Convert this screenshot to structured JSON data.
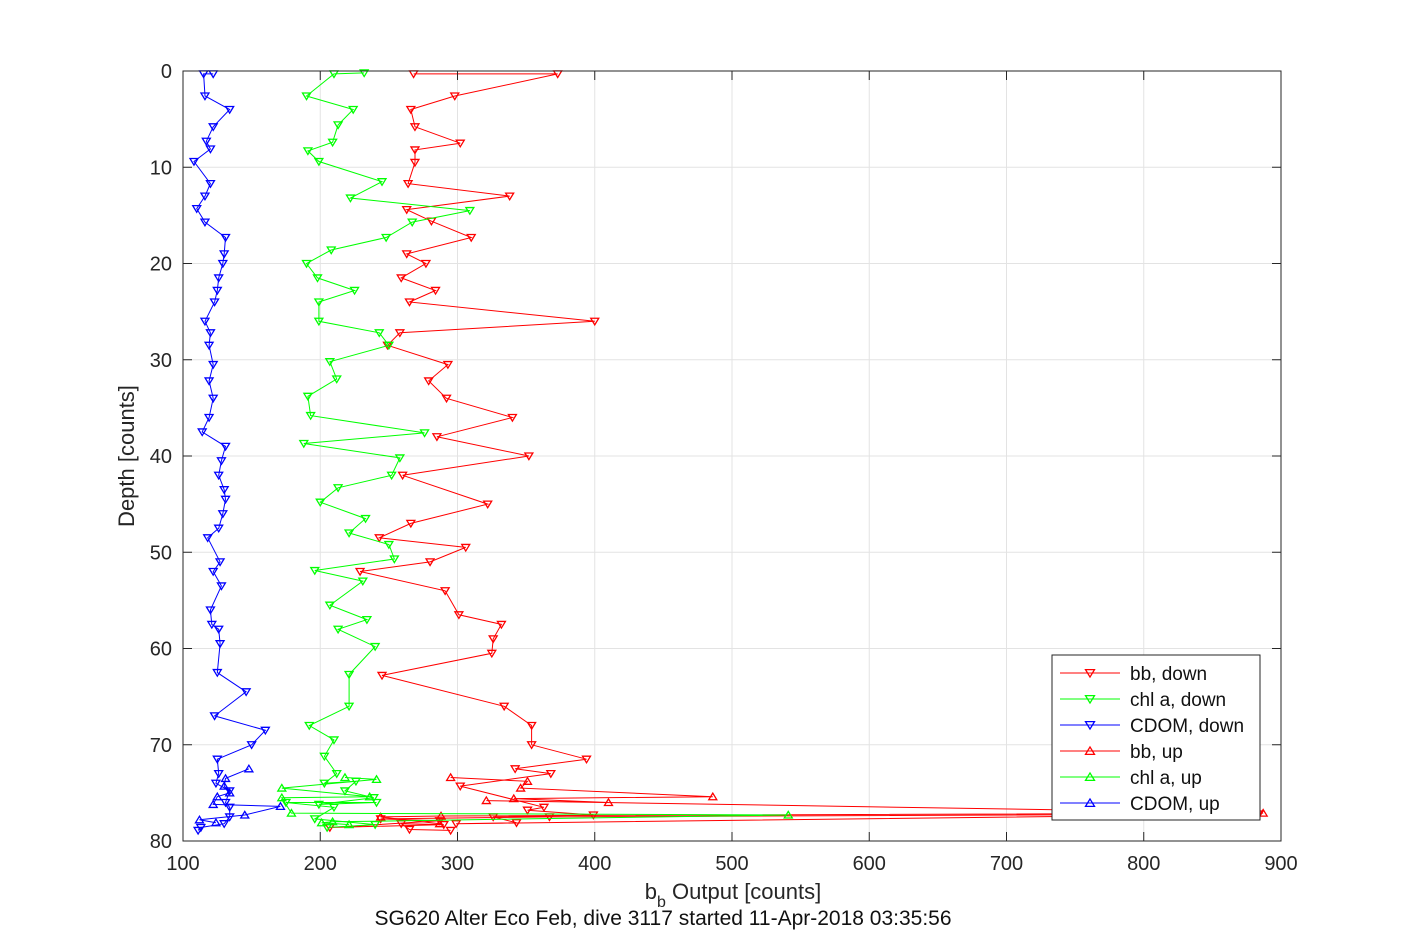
{
  "chart_data": {
    "type": "line",
    "title": "SG620 Alter Eco Feb, dive 3117 started 11-Apr-2018 03:35:56",
    "xlabel": {
      "main": "b",
      "subscript": "b",
      "rest": " Output [counts]"
    },
    "ylabel": "Depth [counts]",
    "xlim": [
      100,
      900
    ],
    "ylim": [
      0,
      80
    ],
    "y_reversed": true,
    "xticks": [
      100,
      200,
      300,
      400,
      500,
      600,
      700,
      800,
      900
    ],
    "yticks": [
      0,
      10,
      20,
      30,
      40,
      50,
      60,
      70,
      80
    ],
    "grid": true,
    "legend_position": "bottom-right",
    "series": [
      {
        "name": "bb, down",
        "color": "#ff0000",
        "marker": "triangle-down",
        "points": [
          [
            268,
            0.3
          ],
          [
            373,
            0.3
          ],
          [
            298,
            2.6
          ],
          [
            266,
            4
          ],
          [
            269,
            5.8
          ],
          [
            302,
            7.5
          ],
          [
            269,
            8.2
          ],
          [
            269,
            9.5
          ],
          [
            264,
            11.7
          ],
          [
            338,
            13
          ],
          [
            263,
            14.4
          ],
          [
            281,
            15.6
          ],
          [
            310,
            17.3
          ],
          [
            263,
            19
          ],
          [
            277,
            20
          ],
          [
            259,
            21.5
          ],
          [
            284,
            22.8
          ],
          [
            265,
            24
          ],
          [
            400,
            26
          ],
          [
            258,
            27.2
          ],
          [
            249,
            28.5
          ],
          [
            293,
            30.5
          ],
          [
            279,
            32.2
          ],
          [
            292,
            34
          ],
          [
            340,
            36
          ],
          [
            285,
            38
          ],
          [
            352,
            40
          ],
          [
            260,
            42
          ],
          [
            322,
            45
          ],
          [
            266,
            47
          ],
          [
            243,
            48.5
          ],
          [
            306,
            49.5
          ],
          [
            280,
            51
          ],
          [
            229,
            52
          ],
          [
            291,
            54
          ],
          [
            301,
            56.5
          ],
          [
            332,
            57.5
          ],
          [
            326,
            59
          ],
          [
            325,
            60.5
          ],
          [
            245,
            62.8
          ],
          [
            334,
            66
          ],
          [
            354,
            68
          ],
          [
            354,
            70
          ],
          [
            394,
            71.5
          ],
          [
            342,
            72.5
          ],
          [
            368,
            73
          ],
          [
            302,
            74.3
          ],
          [
            363,
            76.5
          ],
          [
            351,
            76.8
          ],
          [
            399,
            77.3
          ],
          [
            326,
            77.5
          ],
          [
            343,
            78.1
          ],
          [
            299,
            78.2
          ],
          [
            884,
            77.2
          ],
          [
            367,
            77.5
          ],
          [
            244,
            77.7
          ],
          [
            287,
            77.9
          ],
          [
            207,
            78.6
          ],
          [
            290,
            78.3
          ],
          [
            259,
            78.2
          ],
          [
            265,
            78.8
          ],
          [
            295,
            78.9
          ]
        ]
      },
      {
        "name": "chl a, down",
        "color": "#00ff00",
        "marker": "triangle-down",
        "points": [
          [
            232,
            0.2
          ],
          [
            210,
            0.3
          ],
          [
            190,
            2.6
          ],
          [
            224,
            4
          ],
          [
            213,
            5.6
          ],
          [
            209,
            7.4
          ],
          [
            191,
            8.3
          ],
          [
            199,
            9.4
          ],
          [
            245,
            11.5
          ],
          [
            222,
            13.2
          ],
          [
            309,
            14.5
          ],
          [
            267,
            15.7
          ],
          [
            248,
            17.3
          ],
          [
            208,
            18.6
          ],
          [
            190,
            20
          ],
          [
            198,
            21.5
          ],
          [
            225,
            22.8
          ],
          [
            199,
            24
          ],
          [
            199,
            26
          ],
          [
            243,
            27.2
          ],
          [
            250,
            28.5
          ],
          [
            207,
            30.2
          ],
          [
            212,
            32
          ],
          [
            191,
            33.8
          ],
          [
            193,
            35.8
          ],
          [
            276,
            37.6
          ],
          [
            188,
            38.7
          ],
          [
            258,
            40.2
          ],
          [
            252,
            42
          ],
          [
            213,
            43.3
          ],
          [
            200,
            44.8
          ],
          [
            233,
            46.5
          ],
          [
            221,
            48
          ],
          [
            250,
            49.2
          ],
          [
            254,
            50.7
          ],
          [
            196,
            51.9
          ],
          [
            231,
            53
          ],
          [
            207,
            55.5
          ],
          [
            234,
            57
          ],
          [
            213,
            58
          ],
          [
            240,
            59.8
          ],
          [
            221,
            62.7
          ],
          [
            221,
            66
          ],
          [
            192,
            68
          ],
          [
            210,
            69.5
          ],
          [
            203,
            71.2
          ],
          [
            212,
            73
          ],
          [
            203,
            74
          ],
          [
            226,
            73.8
          ],
          [
            218,
            74.8
          ],
          [
            239,
            75.5
          ],
          [
            199,
            76.2
          ],
          [
            241,
            76
          ],
          [
            175,
            76
          ],
          [
            210,
            76.5
          ],
          [
            196,
            77.7
          ],
          [
            240,
            78.3
          ],
          [
            205,
            78.6
          ]
        ]
      },
      {
        "name": "CDOM, down",
        "color": "#0000ff",
        "marker": "triangle-down",
        "points": [
          [
            122,
            0.3
          ],
          [
            115,
            0.3
          ],
          [
            116,
            2.6
          ],
          [
            134,
            4
          ],
          [
            122,
            5.8
          ],
          [
            117,
            7.3
          ],
          [
            120,
            8.1
          ],
          [
            108,
            9.4
          ],
          [
            120,
            11.7
          ],
          [
            116,
            13
          ],
          [
            110,
            14.3
          ],
          [
            116,
            15.7
          ],
          [
            131,
            17.3
          ],
          [
            130,
            19
          ],
          [
            129,
            20
          ],
          [
            126,
            21.5
          ],
          [
            125,
            22.8
          ],
          [
            123,
            24
          ],
          [
            116,
            26
          ],
          [
            120,
            27.2
          ],
          [
            119,
            28.5
          ],
          [
            122,
            30.5
          ],
          [
            119,
            32.2
          ],
          [
            122,
            34
          ],
          [
            119,
            36
          ],
          [
            114,
            37.5
          ],
          [
            131,
            39
          ],
          [
            128,
            40.5
          ],
          [
            126,
            42
          ],
          [
            130,
            43.5
          ],
          [
            131,
            44.5
          ],
          [
            129,
            46
          ],
          [
            126,
            47.5
          ],
          [
            118,
            48.5
          ],
          [
            127,
            51
          ],
          [
            122,
            52
          ],
          [
            128,
            53.5
          ],
          [
            120,
            56
          ],
          [
            121,
            57.5
          ],
          [
            126,
            58
          ],
          [
            127,
            59.5
          ],
          [
            125,
            62.5
          ],
          [
            146,
            64.5
          ],
          [
            123,
            67
          ],
          [
            160,
            68.5
          ],
          [
            150,
            70
          ],
          [
            125,
            71.5
          ],
          [
            126,
            73
          ],
          [
            124,
            74
          ],
          [
            134,
            74.8
          ],
          [
            131,
            76
          ],
          [
            134,
            76.5
          ],
          [
            134,
            77.5
          ],
          [
            130,
            78.2
          ],
          [
            113,
            78.6
          ],
          [
            111,
            78.9
          ]
        ]
      },
      {
        "name": "bb, up",
        "color": "#ff0000",
        "marker": "triangle-up",
        "points": [
          [
            295,
            73.4
          ],
          [
            351,
            73.8
          ],
          [
            346,
            74.5
          ],
          [
            486,
            75.4
          ],
          [
            341,
            75.6
          ],
          [
            410,
            76
          ],
          [
            321,
            75.8
          ],
          [
            887,
            77.1
          ],
          [
            288,
            77.4
          ],
          [
            244,
            77.5
          ],
          [
            287,
            78.2
          ]
        ]
      },
      {
        "name": "chl a, up",
        "color": "#00ff00",
        "marker": "triangle-up",
        "points": [
          [
            218,
            73.4
          ],
          [
            241,
            73.6
          ],
          [
            172,
            74.5
          ],
          [
            236,
            75.4
          ],
          [
            172,
            75.5
          ],
          [
            179,
            77.1
          ],
          [
            541,
            77.3
          ],
          [
            209,
            78
          ],
          [
            201,
            78.1
          ],
          [
            221,
            78.3
          ]
        ]
      },
      {
        "name": "CDOM, up",
        "color": "#0000ff",
        "marker": "triangle-up",
        "points": [
          [
            148,
            72.5
          ],
          [
            131,
            73.5
          ],
          [
            130,
            74.3
          ],
          [
            134,
            75
          ],
          [
            125,
            75.4
          ],
          [
            122,
            76.2
          ],
          [
            171,
            76.4
          ],
          [
            145,
            77.3
          ],
          [
            112,
            77.8
          ],
          [
            124,
            78.1
          ]
        ]
      }
    ]
  }
}
